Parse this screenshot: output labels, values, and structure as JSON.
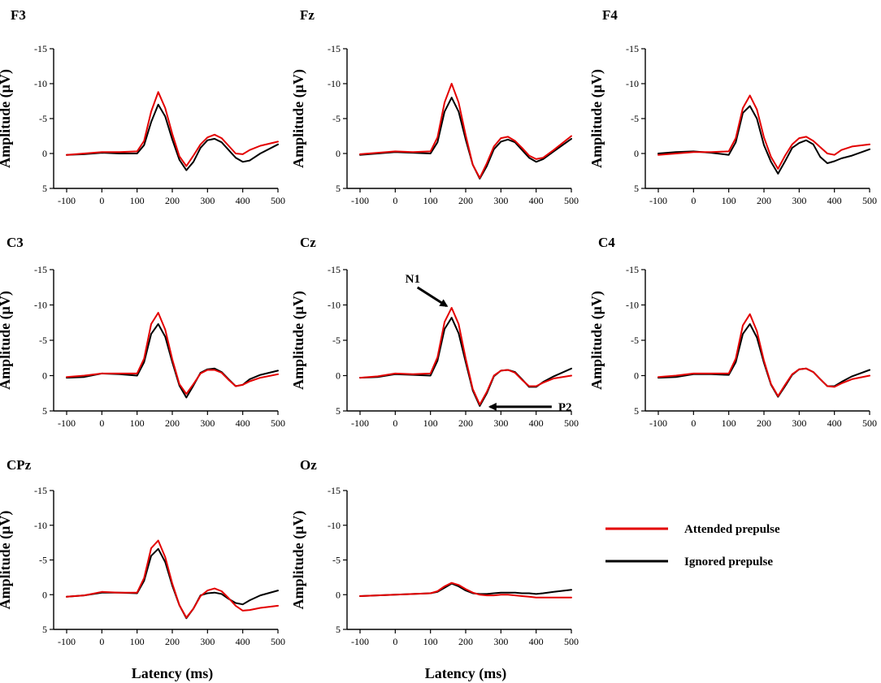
{
  "chart_data": {
    "type": "line",
    "xlabel": "Latency (ms)",
    "ylabel": "Amplitude  (μV)",
    "xlim": [
      -100,
      500
    ],
    "ylim": [
      -15,
      5
    ],
    "y_inverted": true,
    "xticks": [
      "-100",
      "0",
      "100",
      "200",
      "300",
      "400",
      "500"
    ],
    "yticks": [
      "-15",
      "-10",
      "-5",
      "0",
      "5"
    ],
    "series_colors": {
      "attended": "#e30000",
      "ignored": "#000000"
    },
    "legend": {
      "placement": "right",
      "attended": "Attended prepulse",
      "ignored": "Ignored prepulse"
    },
    "x": [
      -100,
      -50,
      0,
      50,
      100,
      120,
      140,
      160,
      180,
      200,
      220,
      240,
      260,
      280,
      300,
      320,
      340,
      360,
      380,
      400,
      420,
      450,
      500
    ],
    "panels": [
      {
        "title": "F3",
        "attended": [
          0.2,
          0.0,
          -0.2,
          -0.2,
          -0.3,
          -1.8,
          -6.0,
          -8.8,
          -6.5,
          -2.8,
          0.4,
          1.8,
          0.3,
          -1.3,
          -2.3,
          -2.7,
          -2.2,
          -1.1,
          0.0,
          0.1,
          -0.5,
          -1.1,
          -1.7
        ],
        "ignored": [
          0.2,
          0.1,
          -0.1,
          0.0,
          0.0,
          -1.2,
          -4.5,
          -7.0,
          -5.3,
          -2.0,
          0.9,
          2.4,
          1.2,
          -0.8,
          -1.9,
          -2.1,
          -1.6,
          -0.5,
          0.6,
          1.2,
          1.0,
          0.0,
          -1.3
        ],
        "xlabel_show": false
      },
      {
        "title": "Fz",
        "attended": [
          0.1,
          -0.1,
          -0.3,
          -0.2,
          -0.3,
          -2.3,
          -7.3,
          -10.0,
          -7.3,
          -2.6,
          1.6,
          3.5,
          1.4,
          -1.0,
          -2.2,
          -2.4,
          -1.8,
          -0.8,
          0.3,
          0.8,
          0.6,
          -0.5,
          -2.5
        ],
        "ignored": [
          0.2,
          0.0,
          -0.2,
          -0.1,
          0.0,
          -1.6,
          -6.0,
          -8.0,
          -6.0,
          -2.0,
          1.6,
          3.6,
          1.8,
          -0.6,
          -1.7,
          -2.0,
          -1.6,
          -0.5,
          0.6,
          1.2,
          0.8,
          -0.3,
          -2.1
        ],
        "xlabel_show": false
      },
      {
        "title": "F4",
        "attended": [
          0.2,
          0.0,
          -0.2,
          -0.2,
          -0.3,
          -2.2,
          -6.5,
          -8.3,
          -6.3,
          -2.3,
          0.5,
          2.2,
          0.3,
          -1.3,
          -2.2,
          -2.4,
          -1.8,
          -0.9,
          0.0,
          0.2,
          -0.5,
          -1.0,
          -1.3
        ],
        "ignored": [
          0.0,
          -0.2,
          -0.3,
          -0.1,
          0.2,
          -1.6,
          -5.8,
          -6.8,
          -5.0,
          -1.2,
          1.2,
          2.9,
          1.1,
          -0.8,
          -1.5,
          -1.9,
          -1.3,
          0.5,
          1.4,
          1.1,
          0.7,
          0.3,
          -0.6
        ],
        "xlabel_show": false
      },
      {
        "title": "C3",
        "attended": [
          0.2,
          0.0,
          -0.3,
          -0.3,
          -0.3,
          -2.4,
          -7.3,
          -8.9,
          -6.5,
          -2.3,
          1.2,
          2.6,
          1.2,
          -0.3,
          -0.8,
          -0.8,
          -0.4,
          0.6,
          1.5,
          1.3,
          0.8,
          0.3,
          -0.2
        ],
        "ignored": [
          0.3,
          0.2,
          -0.3,
          -0.2,
          0.0,
          -1.9,
          -5.9,
          -7.3,
          -5.5,
          -1.9,
          1.4,
          3.1,
          1.4,
          -0.4,
          -0.9,
          -1.0,
          -0.5,
          0.5,
          1.5,
          1.3,
          0.5,
          -0.1,
          -0.7
        ],
        "xlabel_show": false
      },
      {
        "title": "Cz",
        "attended": [
          0.3,
          0.1,
          -0.3,
          -0.2,
          -0.3,
          -2.6,
          -7.6,
          -9.6,
          -7.3,
          -2.4,
          1.9,
          4.1,
          2.3,
          0.0,
          -0.7,
          -0.8,
          -0.4,
          0.6,
          1.5,
          1.5,
          1.0,
          0.4,
          0.0
        ],
        "ignored": [
          0.3,
          0.2,
          -0.2,
          -0.1,
          0.0,
          -2.1,
          -6.6,
          -8.2,
          -6.0,
          -1.9,
          2.1,
          4.3,
          2.5,
          0.1,
          -0.7,
          -0.8,
          -0.5,
          0.5,
          1.6,
          1.6,
          0.9,
          0.1,
          -1.0
        ],
        "annotations": [
          {
            "label": "N1",
            "target_x": 160,
            "target_y": -9.5
          },
          {
            "label": "P2",
            "target_x": 255,
            "target_y": 4.3
          }
        ],
        "xlabel_show": false
      },
      {
        "title": "C4",
        "attended": [
          0.2,
          0.0,
          -0.3,
          -0.3,
          -0.3,
          -2.4,
          -7.1,
          -8.7,
          -6.3,
          -2.1,
          1.2,
          2.9,
          1.3,
          -0.2,
          -0.9,
          -1.0,
          -0.5,
          0.5,
          1.5,
          1.6,
          1.1,
          0.5,
          0.0
        ],
        "ignored": [
          0.3,
          0.2,
          -0.2,
          -0.2,
          -0.1,
          -1.9,
          -5.9,
          -7.3,
          -5.4,
          -1.8,
          1.3,
          3.0,
          1.5,
          -0.1,
          -0.9,
          -1.0,
          -0.5,
          0.5,
          1.5,
          1.5,
          0.9,
          0.1,
          -0.8
        ],
        "xlabel_show": false
      },
      {
        "title": "CPz",
        "attended": [
          0.3,
          0.1,
          -0.4,
          -0.3,
          -0.3,
          -2.4,
          -6.7,
          -7.8,
          -5.4,
          -1.6,
          1.5,
          3.3,
          2.0,
          0.2,
          -0.6,
          -0.9,
          -0.5,
          0.5,
          1.6,
          2.3,
          2.2,
          1.9,
          1.6
        ],
        "ignored": [
          0.3,
          0.1,
          -0.3,
          -0.3,
          -0.2,
          -2.0,
          -5.6,
          -6.6,
          -4.7,
          -1.3,
          1.5,
          3.4,
          2.0,
          0.1,
          -0.2,
          -0.3,
          -0.1,
          0.6,
          1.2,
          1.4,
          0.8,
          0.1,
          -0.6
        ],
        "xlabel_show": true
      },
      {
        "title": "Oz",
        "attended": [
          0.2,
          0.1,
          0.0,
          -0.1,
          -0.2,
          -0.5,
          -1.2,
          -1.7,
          -1.4,
          -0.8,
          -0.3,
          0.0,
          0.1,
          0.1,
          0.0,
          0.0,
          0.1,
          0.2,
          0.3,
          0.4,
          0.4,
          0.4,
          0.4
        ],
        "ignored": [
          0.2,
          0.1,
          0.0,
          -0.1,
          -0.2,
          -0.4,
          -1.0,
          -1.6,
          -1.2,
          -0.6,
          -0.2,
          -0.1,
          -0.1,
          -0.2,
          -0.3,
          -0.3,
          -0.3,
          -0.2,
          -0.2,
          -0.1,
          -0.2,
          -0.4,
          -0.7
        ],
        "xlabel_show": true
      }
    ]
  }
}
